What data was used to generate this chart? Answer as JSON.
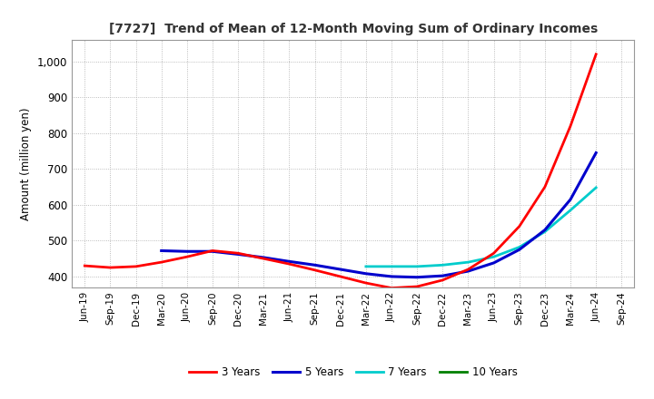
{
  "title": "[7727]  Trend of Mean of 12-Month Moving Sum of Ordinary Incomes",
  "ylabel": "Amount (million yen)",
  "ylim": [
    370,
    1060
  ],
  "yticks": [
    400,
    500,
    600,
    700,
    800,
    900,
    1000
  ],
  "background_color": "#ffffff",
  "grid_color": "#aaaaaa",
  "series": {
    "3 Years": {
      "color": "#ff0000",
      "linewidth": 2.0,
      "points": [
        [
          "Jun-19",
          430
        ],
        [
          "Sep-19",
          425
        ],
        [
          "Dec-19",
          428
        ],
        [
          "Mar-20",
          440
        ],
        [
          "Jun-20",
          455
        ],
        [
          "Sep-20",
          472
        ],
        [
          "Dec-20",
          465
        ],
        [
          "Mar-21",
          450
        ],
        [
          "Jun-21",
          435
        ],
        [
          "Sep-21",
          418
        ],
        [
          "Dec-21",
          400
        ],
        [
          "Mar-22",
          382
        ],
        [
          "Jun-22",
          368
        ],
        [
          "Sep-22",
          372
        ],
        [
          "Dec-22",
          390
        ],
        [
          "Mar-23",
          420
        ],
        [
          "Jun-23",
          465
        ],
        [
          "Sep-23",
          540
        ],
        [
          "Dec-23",
          650
        ],
        [
          "Mar-24",
          820
        ],
        [
          "Jun-24",
          1020
        ]
      ]
    },
    "5 Years": {
      "color": "#0000cc",
      "linewidth": 2.2,
      "points": [
        [
          "Mar-20",
          472
        ],
        [
          "Jun-20",
          470
        ],
        [
          "Sep-20",
          470
        ],
        [
          "Dec-20",
          462
        ],
        [
          "Mar-21",
          453
        ],
        [
          "Jun-21",
          442
        ],
        [
          "Sep-21",
          432
        ],
        [
          "Dec-21",
          420
        ],
        [
          "Mar-22",
          408
        ],
        [
          "Jun-22",
          400
        ],
        [
          "Sep-22",
          398
        ],
        [
          "Dec-22",
          402
        ],
        [
          "Mar-23",
          415
        ],
        [
          "Jun-23",
          438
        ],
        [
          "Sep-23",
          475
        ],
        [
          "Dec-23",
          530
        ],
        [
          "Mar-24",
          615
        ],
        [
          "Jun-24",
          745
        ]
      ]
    },
    "7 Years": {
      "color": "#00cccc",
      "linewidth": 2.0,
      "points": [
        [
          "Mar-22",
          428
        ],
        [
          "Jun-22",
          428
        ],
        [
          "Sep-22",
          428
        ],
        [
          "Dec-22",
          432
        ],
        [
          "Mar-23",
          440
        ],
        [
          "Jun-23",
          455
        ],
        [
          "Sep-23",
          482
        ],
        [
          "Dec-23",
          525
        ],
        [
          "Mar-24",
          585
        ],
        [
          "Jun-24",
          648
        ]
      ]
    },
    "10 Years": {
      "color": "#008000",
      "linewidth": 2.0,
      "points": []
    }
  },
  "xtick_labels": [
    "Jun-19",
    "Sep-19",
    "Dec-19",
    "Mar-20",
    "Jun-20",
    "Sep-20",
    "Dec-20",
    "Mar-21",
    "Jun-21",
    "Sep-21",
    "Dec-21",
    "Mar-22",
    "Jun-22",
    "Sep-22",
    "Dec-22",
    "Mar-23",
    "Jun-23",
    "Sep-23",
    "Dec-23",
    "Mar-24",
    "Jun-24",
    "Sep-24"
  ],
  "legend_order": [
    "3 Years",
    "5 Years",
    "7 Years",
    "10 Years"
  ]
}
